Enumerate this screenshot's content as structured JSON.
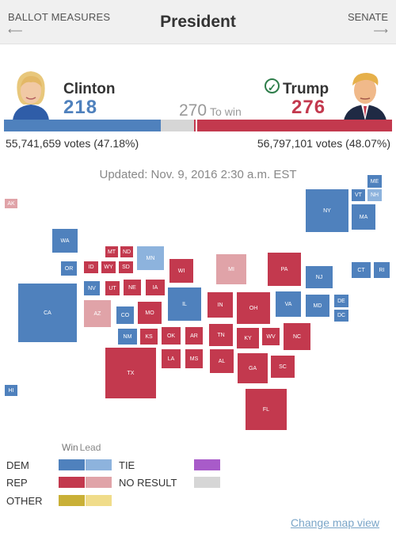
{
  "nav": {
    "left_label": "BALLOT MEASURES",
    "left_arrow": "⟵",
    "title": "President",
    "right_label": "SENATE",
    "right_arrow": "⟶"
  },
  "candidates": {
    "dem": {
      "name": "Clinton",
      "ev": "218",
      "votes": "55,741,659 votes (47.18%)",
      "color": "#4f81bd"
    },
    "rep": {
      "name": "Trump",
      "ev": "276",
      "votes": "56,797,101 votes (48.07%)",
      "color": "#c3394e",
      "winner_icon": "check-icon"
    }
  },
  "to_win": {
    "number": "270",
    "label": "To win"
  },
  "updated": "Updated: Nov. 9, 2016 2:30 a.m. EST",
  "map": {
    "states": {
      "AK": "AK",
      "HI": "HI",
      "ME": "ME",
      "VT": "VT",
      "NH": "NH",
      "WA": "WA",
      "NY": "NY",
      "MA": "MA",
      "MT": "MT",
      "ND": "ND",
      "MN": "MN",
      "OR": "OR",
      "ID": "ID",
      "WY": "WY",
      "SD": "SD",
      "WI": "WI",
      "MI": "MI",
      "PA": "PA",
      "CT": "CT",
      "RI": "RI",
      "NV": "NV",
      "UT": "UT",
      "NE": "NE",
      "IA": "IA",
      "NJ": "NJ",
      "CA": "CA",
      "AZ": "AZ",
      "CO": "CO",
      "MO": "MO",
      "IL": "IL",
      "IN": "IN",
      "OH": "OH",
      "VA": "VA",
      "MD": "MD",
      "DE": "DE",
      "DC": "DC",
      "NM": "NM",
      "KS": "KS",
      "OK": "OK",
      "AR": "AR",
      "TN": "TN",
      "KY": "KY",
      "WV": "WV",
      "NC": "NC",
      "LA": "LA",
      "MS": "MS",
      "AL": "AL",
      "TX": "TX",
      "GA": "GA",
      "SC": "SC",
      "FL": "FL"
    }
  },
  "legend": {
    "win": "Win",
    "lead": "Lead",
    "dem": "DEM",
    "rep": "REP",
    "other": "OTHER",
    "tie": "TIE",
    "no_result": "NO RESULT",
    "colors": {
      "dem_win": "#4f81bd",
      "dem_lead": "#8db3dd",
      "rep_win": "#c3394e",
      "rep_lead": "#e0a3a8",
      "other_win": "#c9b037",
      "other_lead": "#f0dc8a",
      "tie": "#a85bc9",
      "no_result": "#d6d6d6"
    }
  },
  "footer": {
    "change_map": "Change map view"
  }
}
